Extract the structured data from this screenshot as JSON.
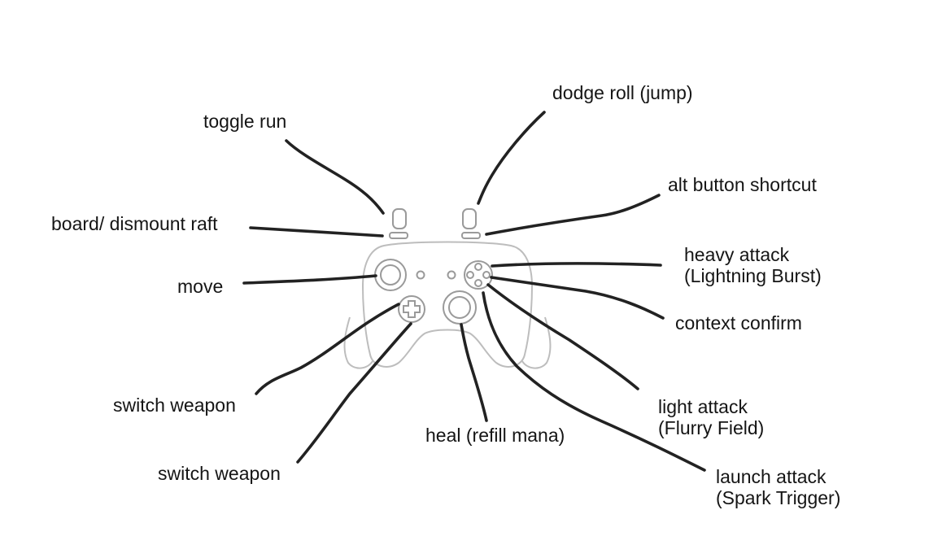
{
  "labels": {
    "dodge_roll": "dodge roll (jump)",
    "toggle_run": "toggle run",
    "alt_button": "alt button shortcut",
    "board_raft": "board/ dismount raft",
    "heavy_attack": [
      "heavy attack",
      "(Lightning Burst)"
    ],
    "move": "move",
    "context_confirm": "context confirm",
    "switch_weapon_upper": "switch weapon",
    "light_attack": [
      "light attack",
      "(Flurry Field)"
    ],
    "heal": "heal (refill mana)",
    "switch_weapon_lower": "switch weapon",
    "launch_attack": [
      "launch attack",
      "(Spark Trigger)"
    ]
  },
  "icons": {
    "controller": "gamepad-icon"
  },
  "colors": {
    "leader_lines": "#222222",
    "controller_outline": "#bdbdbd",
    "text": "#151515",
    "background": "#ffffff"
  }
}
